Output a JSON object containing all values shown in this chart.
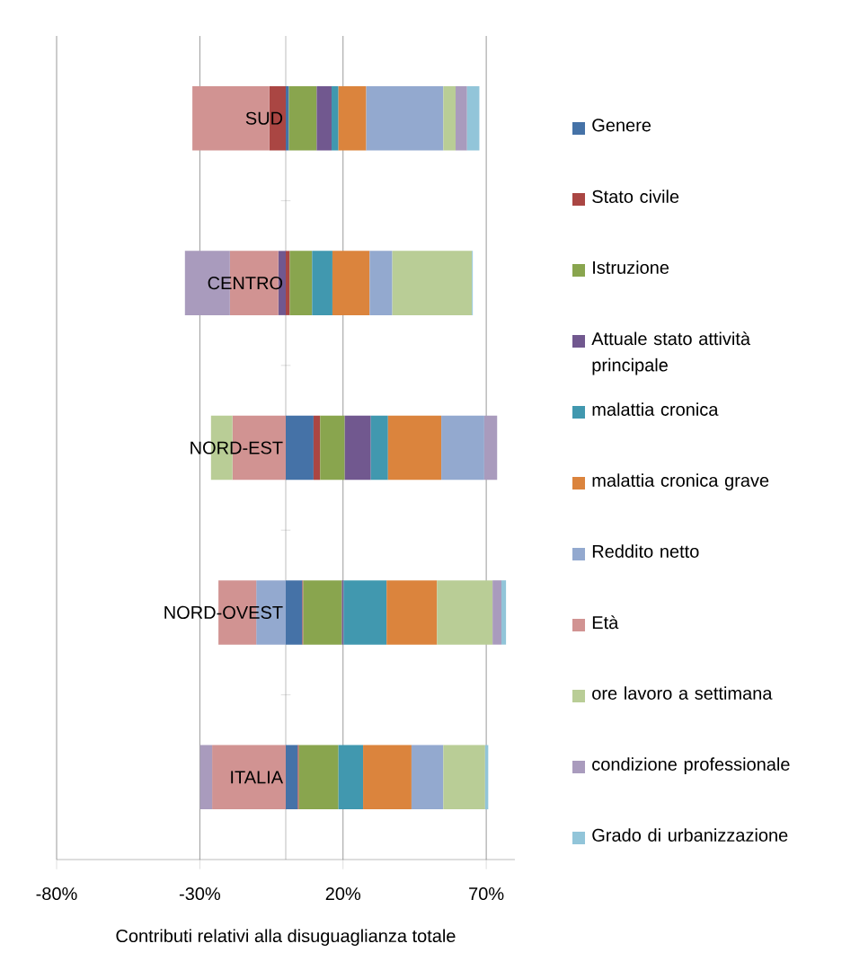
{
  "chart_data": {
    "type": "bar",
    "orientation": "horizontal",
    "stacked": true,
    "categories": [
      "SUD",
      "CENTRO",
      "NORD-EST",
      "NORD-OVEST",
      "ITALIA"
    ],
    "series": [
      {
        "name": "Genere",
        "color": "#4572a7",
        "values": [
          1.1,
          0,
          9.7,
          5.8,
          4.2
        ]
      },
      {
        "name": "Stato civile",
        "color": "#aa4643",
        "values": [
          -5.7,
          1.4,
          2.3,
          0.3,
          0.4
        ]
      },
      {
        "name": "Istruzione",
        "color": "#89a54e",
        "values": [
          9.7,
          7.8,
          8.6,
          13.5,
          13.8
        ]
      },
      {
        "name": "Attuale stato attività principale",
        "color": "#71588f",
        "values": [
          5.2,
          -2.6,
          9.1,
          0.6,
          0
        ]
      },
      {
        "name": "malattia cronica",
        "color": "#4198af",
        "values": [
          2.4,
          7.1,
          6.0,
          15.0,
          8.6
        ]
      },
      {
        "name": "malattia cronica grave",
        "color": "#db843d",
        "values": [
          9.7,
          13.0,
          18.6,
          17.6,
          16.9
        ]
      },
      {
        "name": "Reddito netto",
        "color": "#93a9cf",
        "values": [
          26.9,
          7.9,
          15.0,
          -10.3,
          11.1
        ]
      },
      {
        "name": "Età",
        "color": "#d19392",
        "values": [
          -26.9,
          -16.9,
          -18.6,
          -13.2,
          -25.7
        ]
      },
      {
        "name": "ore lavoro a settimana",
        "color": "#b9cd96",
        "values": [
          4.3,
          27.8,
          -7.5,
          19.4,
          14.6
        ]
      },
      {
        "name": "condizione professionale",
        "color": "#a99bbd",
        "values": [
          4.0,
          -15.7,
          4.5,
          3.1,
          -4.2
        ]
      },
      {
        "name": "Grado di urbanizzazione",
        "color": "#92c5d9",
        "values": [
          4.3,
          0.3,
          0,
          1.6,
          1.1
        ]
      }
    ],
    "xlim": [
      -80,
      80
    ],
    "xticks": [
      {
        "value": -80,
        "label": "-80%"
      },
      {
        "value": -30,
        "label": "-30%"
      },
      {
        "value": 20,
        "label": "20%"
      },
      {
        "value": 70,
        "label": "70%"
      }
    ],
    "xlabel": "Contributi relativi alla disuguaglianza totale",
    "grid": "x",
    "legend": "right"
  }
}
